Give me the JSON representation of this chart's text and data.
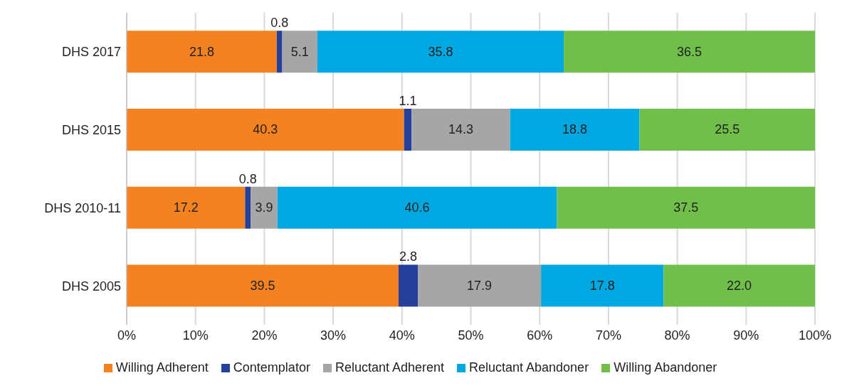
{
  "chart_data": {
    "type": "bar",
    "orientation": "horizontal",
    "stacked": true,
    "categories": [
      "DHS 2017",
      "DHS 2015",
      "DHS 2010-11",
      "DHS 2005"
    ],
    "series": [
      {
        "name": "Willing Adherent",
        "color": "#f58220",
        "values": [
          21.8,
          40.3,
          17.2,
          39.5
        ],
        "value_labels": [
          "21.8",
          "40.3",
          "17.2",
          "39.5"
        ]
      },
      {
        "name": "Contemplator",
        "color": "#25409a",
        "values": [
          0.8,
          1.1,
          0.8,
          2.8
        ],
        "value_labels": [
          "0.8",
          "1.1",
          "0.8",
          "2.8"
        ]
      },
      {
        "name": "Reluctant Adherent",
        "color": "#a6a6a6",
        "values": [
          5.1,
          14.3,
          3.9,
          17.9
        ],
        "value_labels": [
          "5.1",
          "14.3",
          "3.9",
          "17.9"
        ]
      },
      {
        "name": "Reluctant Abandoner",
        "color": "#00a8e1",
        "values": [
          35.8,
          18.8,
          40.6,
          17.8
        ],
        "value_labels": [
          "35.8",
          "18.8",
          "40.6",
          "17.8"
        ]
      },
      {
        "name": "Willing Abandoner",
        "color": "#6fbf4a",
        "values": [
          36.5,
          25.5,
          37.5,
          22.0
        ],
        "value_labels": [
          "36.5",
          "25.5",
          "37.5",
          "22.0"
        ]
      }
    ],
    "xlim": [
      0,
      100
    ],
    "xticks": [
      {
        "value": 0,
        "label": "0%"
      },
      {
        "value": 10,
        "label": "10%"
      },
      {
        "value": 20,
        "label": "20%"
      },
      {
        "value": 30,
        "label": "30%"
      },
      {
        "value": 40,
        "label": "40%"
      },
      {
        "value": 50,
        "label": "50%"
      },
      {
        "value": 60,
        "label": "60%"
      },
      {
        "value": 70,
        "label": "70%"
      },
      {
        "value": 80,
        "label": "80%"
      },
      {
        "value": 90,
        "label": "90%"
      },
      {
        "value": 100,
        "label": "100%"
      }
    ],
    "grid": "x",
    "legend": "bottom"
  }
}
